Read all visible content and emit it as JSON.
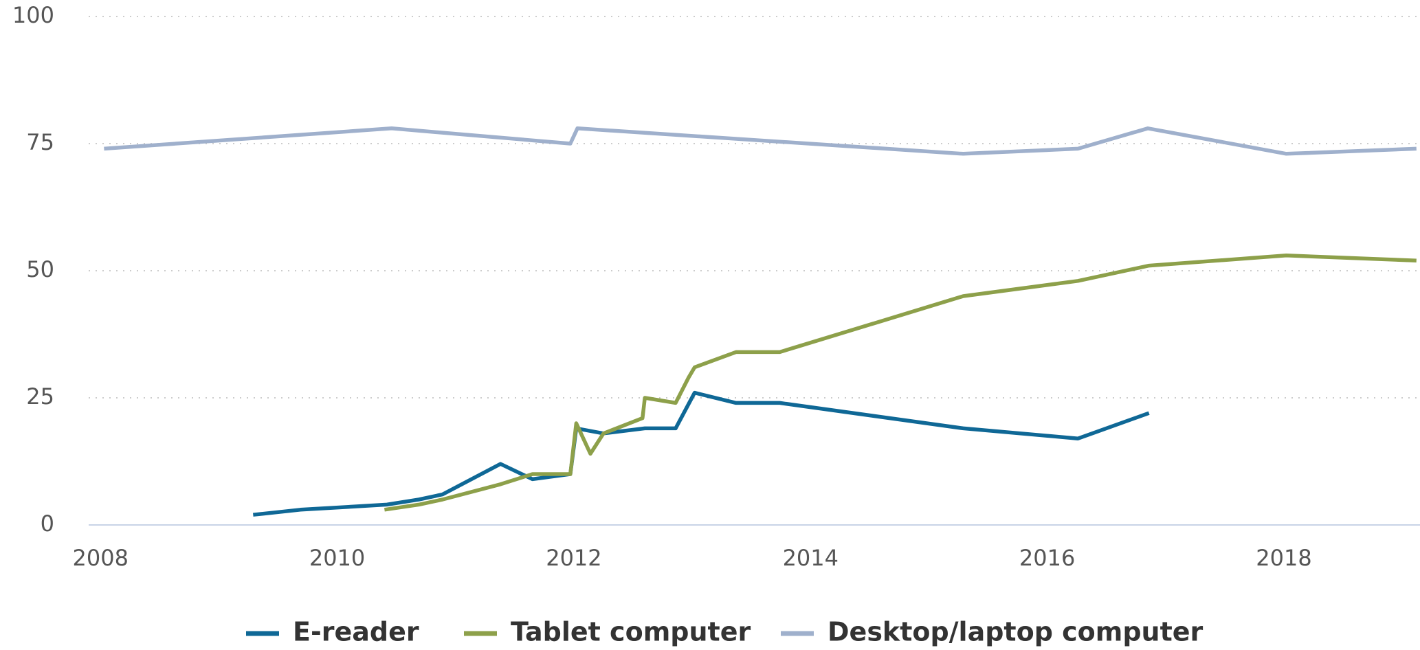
{
  "chart_data": {
    "type": "line",
    "xlim": [
      2007.9,
      2019.15
    ],
    "xticks": [
      2008,
      2010,
      2012,
      2014,
      2016,
      2018
    ],
    "ylim": [
      0,
      100
    ],
    "yticks": [
      0,
      25,
      50,
      75,
      100
    ],
    "grid": true,
    "legend": "bottom",
    "series": [
      {
        "name": "E-reader",
        "color": "#0f6896",
        "x": [
          2009.29,
          2009.69,
          2010.42,
          2010.69,
          2010.89,
          2011.38,
          2011.65,
          2011.97,
          2012.02,
          2012.25,
          2012.6,
          2012.86,
          2013.02,
          2013.37,
          2013.74,
          2015.29,
          2016.26,
          2016.86
        ],
        "values": [
          2,
          3,
          4,
          5,
          6,
          12,
          9,
          10,
          19,
          18,
          19,
          19,
          26,
          24,
          24,
          19,
          17,
          22
        ]
      },
      {
        "name": "Tablet computer",
        "color": "#8da04a",
        "x": [
          2010.4,
          2010.69,
          2010.89,
          2011.38,
          2011.65,
          2011.97,
          2012.02,
          2012.14,
          2012.25,
          2012.58,
          2012.6,
          2012.86,
          2012.97,
          2013.02,
          2013.37,
          2013.74,
          2015.29,
          2016.26,
          2016.86,
          2018.02,
          2019.12
        ],
        "values": [
          3,
          4,
          5,
          8,
          10,
          10,
          20,
          14,
          18,
          21,
          25,
          24,
          29,
          31,
          34,
          34,
          45,
          48,
          51,
          53,
          52
        ]
      },
      {
        "name": "Desktop/laptop computer",
        "color": "#9fb0cc",
        "x": [
          2008.03,
          2010.46,
          2011.97,
          2012.03,
          2015.29,
          2016.26,
          2016.85,
          2018.02,
          2019.12
        ],
        "values": [
          74,
          78,
          75,
          78,
          73,
          74,
          78,
          73,
          74
        ]
      }
    ]
  }
}
